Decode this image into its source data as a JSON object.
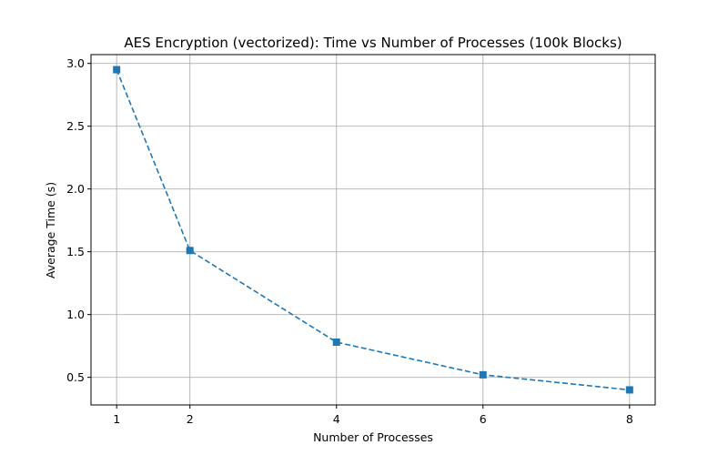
{
  "chart_data": {
    "type": "line",
    "title": "AES Encryption (vectorized): Time vs Number of Processes (100k Blocks)",
    "xlabel": "Number of Processes",
    "ylabel": "Average Time (s)",
    "x": [
      1,
      2,
      4,
      6,
      8
    ],
    "xticks": [
      "1",
      "2",
      "4",
      "6",
      "8"
    ],
    "yticks": [
      "0.5",
      "1.0",
      "1.5",
      "2.0",
      "2.5",
      "3.0"
    ],
    "ytick_values": [
      0.5,
      1.0,
      1.5,
      2.0,
      2.5,
      3.0
    ],
    "xlim": [
      0.65,
      8.35
    ],
    "ylim": [
      0.28,
      3.07
    ],
    "grid": true,
    "series": [
      {
        "values": [
          2.95,
          1.51,
          0.78,
          0.52,
          0.4
        ],
        "color": "#1f77b4",
        "line_style": "dashed",
        "marker": "square"
      }
    ]
  }
}
